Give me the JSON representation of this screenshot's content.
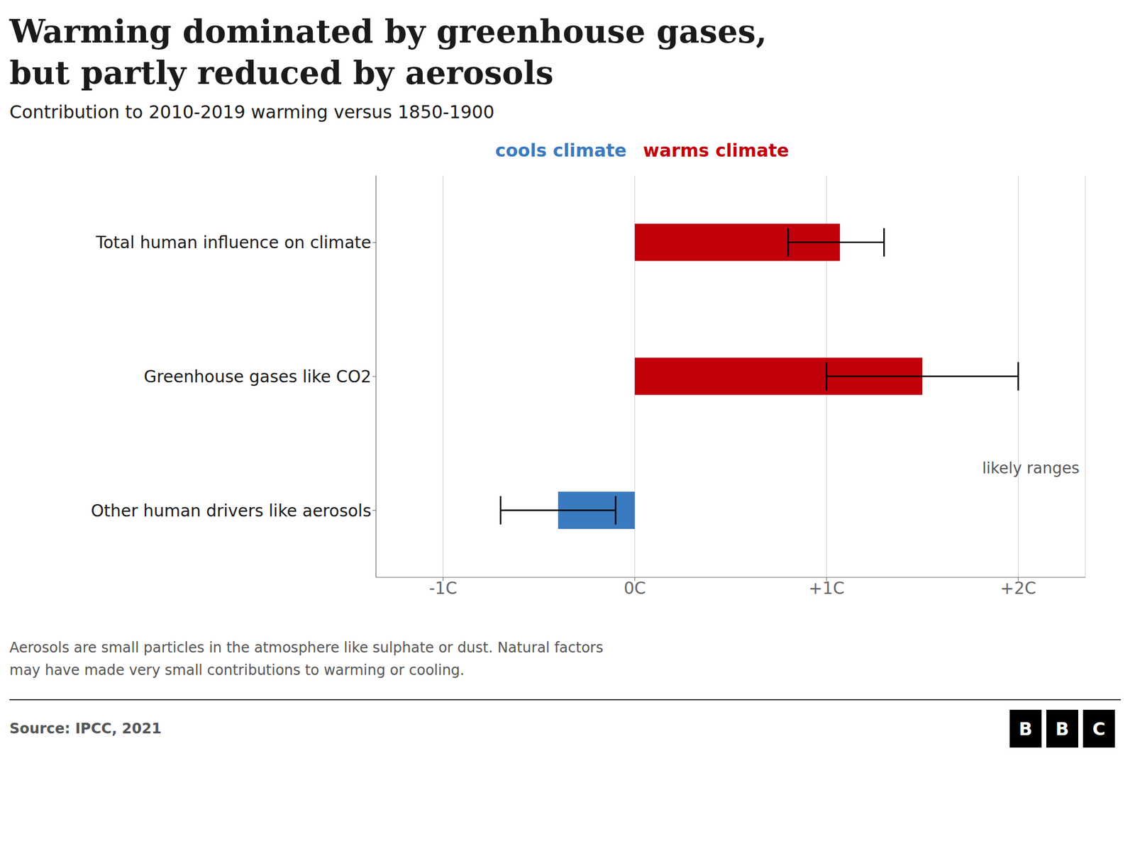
{
  "chart_data": {
    "type": "bar",
    "orientation": "horizontal",
    "title": "Warming dominated by greenhouse gases,\nbut partly reduced by aerosols",
    "subtitle": "Contribution to 2010-2019 warming versus 1850-1900",
    "categories": [
      "Total human influence on climate",
      "Greenhouse gases like CO2",
      "Other human drivers like aerosols"
    ],
    "values": [
      1.07,
      1.5,
      -0.4
    ],
    "error_low": [
      0.27,
      0.5,
      0.3
    ],
    "error_high": [
      0.23,
      0.5,
      0.3
    ],
    "colors": [
      "#c0000a",
      "#c0000a",
      "#3a7abf"
    ],
    "xlim": [
      -1.35,
      2.35
    ],
    "xticks": [
      {
        "value": -1,
        "label": "-1C"
      },
      {
        "value": 0,
        "label": "0C"
      },
      {
        "value": 1,
        "label": "+1C"
      },
      {
        "value": 2,
        "label": "+2C"
      }
    ],
    "grid": true,
    "annotations": [
      {
        "text": "cools climate",
        "color": "#3a7abf"
      },
      {
        "text": "warms climate",
        "color": "#c0000a"
      },
      {
        "text": "likely ranges"
      }
    ],
    "footer": "Aerosols are small particles in the atmosphere like sulphate or dust. Natural factors\nmay have made very small contributions to warming or cooling.",
    "source": "Source: IPCC, 2021",
    "logo": "BBC"
  }
}
